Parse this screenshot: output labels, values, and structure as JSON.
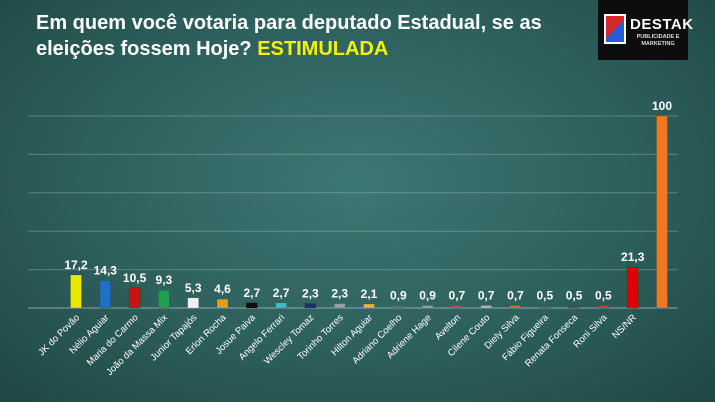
{
  "header": {
    "title_main": "Em quem você votaria para deputado Estadual, se as eleições fossem Hoje?",
    "title_highlight": "ESTIMULADA"
  },
  "logo": {
    "name": "DESTAK",
    "tagline": "PUBLICIDADE E MARKETING"
  },
  "chart_data": {
    "type": "bar",
    "title": "Em quem você votaria para deputado Estadual, se as eleições fossem Hoje? ESTIMULADA",
    "xlabel": "",
    "ylabel": "",
    "ylim": [
      0,
      100
    ],
    "grid": true,
    "categories": [
      "JK do Povão",
      "Nélio Aguiar",
      "Maria do Carmo",
      "João da Massa Mix",
      "Junior Tapajós",
      "Erlon Rocha",
      "Josue Paiva",
      "Angelo Ferrari",
      "Wescley Tomaz",
      "Torinho Torres",
      "Hilton Aguiar",
      "Adriano Coelho",
      "Adriene Hage",
      "Avelton",
      "Cilene Couto",
      "Diely Silva",
      "Fábio Figueira",
      "Renata Fonseca",
      "Roni Silva",
      "NS/NR"
    ],
    "values": [
      17.2,
      14.3,
      10.5,
      9.3,
      5.3,
      4.6,
      2.7,
      2.7,
      2.3,
      2.3,
      2.1,
      0.9,
      0.9,
      0.7,
      0.7,
      0.7,
      0.5,
      0.5,
      0.5,
      21.3
    ],
    "value_labels": [
      "17,2",
      "14,3",
      "10,5",
      "9,3",
      "5,3",
      "4,6",
      "2,7",
      "2,7",
      "2,3",
      "2,3",
      "2,1",
      "0,9",
      "0,9",
      "0,7",
      "0,7",
      "0,7",
      "0,5",
      "0,5",
      "0,5",
      "21,3"
    ],
    "colors": [
      "#e8e800",
      "#1f6fc4",
      "#c81414",
      "#1ea050",
      "#f0f0f0",
      "#e0a020",
      "#101010",
      "#3cc0c8",
      "#18306e",
      "#9aa0a6",
      "#e0b43c",
      "#5a7a78",
      "#9aa0a6",
      "#c0506a",
      "#b8b8b8",
      "#e06a40",
      "#4a6a68",
      "#3a5a58",
      "#d04040",
      "#e00000"
    ],
    "total_bar": {
      "label": "100",
      "value": 100,
      "color": "#f07820"
    }
  }
}
